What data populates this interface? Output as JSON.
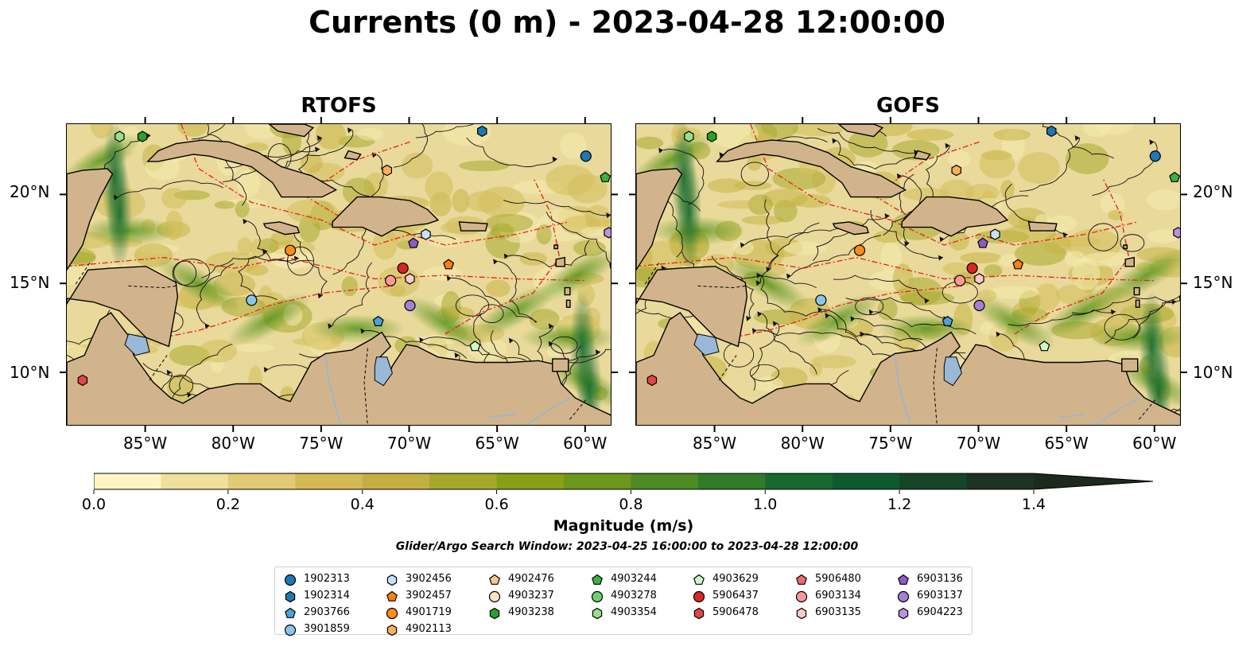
{
  "title": "Currents (0 m) - 2023-04-28 12:00:00",
  "panels": [
    {
      "title": "RTOFS"
    },
    {
      "title": "GOFS"
    }
  ],
  "lon_ticks": [
    "85°W",
    "80°W",
    "75°W",
    "70°W",
    "65°W",
    "60°W"
  ],
  "lat_ticks": [
    "20°N",
    "15°N",
    "10°N"
  ],
  "extent": {
    "lon": [
      -89.5,
      -58.5
    ],
    "lat": [
      7,
      24
    ]
  },
  "colorbar": {
    "label": "Magnitude (m/s)",
    "ticks": [
      "0.0",
      "0.2",
      "0.4",
      "0.6",
      "0.8",
      "1.0",
      "1.2",
      "1.4"
    ],
    "range": [
      0,
      1.5
    ],
    "extend": "max",
    "colors": [
      "#fdf6c4",
      "#efe09b",
      "#e2cb74",
      "#d5b955",
      "#c4b042",
      "#a6a82c",
      "#88a015",
      "#6b971a",
      "#4d8a23",
      "#317b28",
      "#18692f",
      "#0e5a2d",
      "#164527",
      "#1b3320",
      "#1b2a1b"
    ]
  },
  "search_window": "Glider/Argo Search Window: 2023-04-25 16:00:00 to 2023-04-28 12:00:00",
  "legend": [
    {
      "id": "1902313",
      "marker": "circle",
      "color": "#1f77b4"
    },
    {
      "id": "1902314",
      "marker": "hexagon",
      "color": "#1f77b4"
    },
    {
      "id": "2903766",
      "marker": "pentagon",
      "color": "#4ea1d9"
    },
    {
      "id": "3901859",
      "marker": "circle",
      "color": "#8cc4ec"
    },
    {
      "id": "3902456",
      "marker": "hexagon",
      "color": "#c2e2f7"
    },
    {
      "id": "3902457",
      "marker": "pentagon",
      "color": "#ff7f0e"
    },
    {
      "id": "4901719",
      "marker": "circle",
      "color": "#ff8c1a"
    },
    {
      "id": "4902113",
      "marker": "hexagon",
      "color": "#ffae5e"
    },
    {
      "id": "4902476",
      "marker": "pentagon",
      "color": "#ffc48f"
    },
    {
      "id": "4903237",
      "marker": "circle",
      "color": "#ffe2c4"
    },
    {
      "id": "4903238",
      "marker": "hexagon",
      "color": "#2ca02c"
    },
    {
      "id": "4903244",
      "marker": "pentagon",
      "color": "#3cb043"
    },
    {
      "id": "4903278",
      "marker": "circle",
      "color": "#6fcf6f"
    },
    {
      "id": "4903354",
      "marker": "hexagon",
      "color": "#98df8a"
    },
    {
      "id": "4903629",
      "marker": "pentagon",
      "color": "#cff7c9"
    },
    {
      "id": "5906437",
      "marker": "circle",
      "color": "#d62728"
    },
    {
      "id": "5906478",
      "marker": "hexagon",
      "color": "#e0474a"
    },
    {
      "id": "5906480",
      "marker": "pentagon",
      "color": "#ea6b6e"
    },
    {
      "id": "6903134",
      "marker": "circle",
      "color": "#ff9896"
    },
    {
      "id": "6903135",
      "marker": "hexagon",
      "color": "#ffc9c7"
    },
    {
      "id": "6903136",
      "marker": "pentagon",
      "color": "#8c5bc7"
    },
    {
      "id": "6903137",
      "marker": "circle",
      "color": "#a77fd6"
    },
    {
      "id": "6904223",
      "marker": "hexagon",
      "color": "#b894e0"
    }
  ],
  "floats": [
    {
      "id": "1902313",
      "lon": -60.0,
      "lat": 22.2
    },
    {
      "id": "1902314",
      "lon": -65.9,
      "lat": 23.6
    },
    {
      "id": "2903766",
      "lon": -71.8,
      "lat": 12.9
    },
    {
      "id": "3901859",
      "lon": -79.0,
      "lat": 14.1
    },
    {
      "id": "3902456",
      "lon": -69.1,
      "lat": 17.8
    },
    {
      "id": "3902457",
      "lon": -67.8,
      "lat": 16.1
    },
    {
      "id": "4901719",
      "lon": -76.8,
      "lat": 16.9
    },
    {
      "id": "4902113",
      "lon": -71.3,
      "lat": 21.4
    },
    {
      "id": "4903244",
      "lon": -58.9,
      "lat": 21.0
    },
    {
      "id": "4903238",
      "lon": -85.2,
      "lat": 23.3
    },
    {
      "id": "4903354",
      "lon": -86.5,
      "lat": 23.3
    },
    {
      "id": "4903629",
      "lon": -66.3,
      "lat": 11.5
    },
    {
      "id": "5906437",
      "lon": -70.4,
      "lat": 15.9
    },
    {
      "id": "5906478",
      "lon": -88.6,
      "lat": 9.6
    },
    {
      "id": "6903134",
      "lon": -71.1,
      "lat": 15.2
    },
    {
      "id": "6903135",
      "lon": -70.0,
      "lat": 15.3
    },
    {
      "id": "6903136",
      "lon": -69.8,
      "lat": 17.3
    },
    {
      "id": "6903137",
      "lon": -70.0,
      "lat": 13.8
    },
    {
      "id": "6904223",
      "lon": -58.7,
      "lat": 17.9
    }
  ]
}
